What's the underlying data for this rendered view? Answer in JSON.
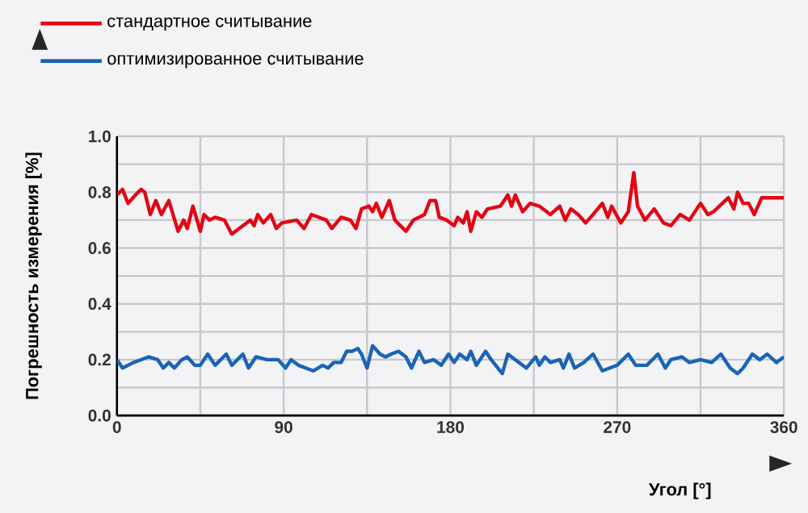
{
  "chart_data": {
    "type": "line",
    "xlabel": "Угол [°]",
    "ylabel": "Погрешность измерения [%]",
    "xlim": [
      0,
      360
    ],
    "ylim": [
      0,
      1.0
    ],
    "xticks": [
      0,
      {
        "value": 45,
        "label": null
      },
      90,
      {
        "value": 135,
        "label": null
      },
      180,
      {
        "value": 225,
        "label": null
      },
      270,
      {
        "value": 315,
        "label": null
      },
      360
    ],
    "yticks": [
      {
        "value": 0,
        "label": "0.0"
      },
      {
        "value": 0.1,
        "label": null
      },
      {
        "value": 0.2,
        "label": "0.2"
      },
      {
        "value": 0.3,
        "label": null
      },
      {
        "value": 0.4,
        "label": "0.4"
      },
      {
        "value": 0.5,
        "label": null
      },
      {
        "value": 0.6,
        "label": "0.6"
      },
      {
        "value": 0.7,
        "label": null
      },
      {
        "value": 0.8,
        "label": "0.8"
      },
      {
        "value": 0.9,
        "label": null
      },
      {
        "value": 1.0,
        "label": "1.0"
      }
    ],
    "grid": true,
    "legend": "top left",
    "series": [
      {
        "name": "стандартное считывание",
        "color": "#e30613",
        "x": [
          0,
          3,
          6,
          10,
          13,
          15,
          18,
          21,
          24,
          28,
          33,
          36,
          38,
          41,
          45,
          47,
          50,
          53,
          58,
          62,
          66,
          72,
          74,
          76,
          79,
          83,
          86,
          89,
          97,
          101,
          105,
          113,
          116,
          121,
          126,
          129,
          132,
          136,
          138,
          140,
          143,
          147,
          150,
          156,
          160,
          166,
          169,
          172,
          174,
          178,
          182,
          184,
          187,
          189,
          191,
          194,
          197,
          200,
          207,
          211,
          213,
          215,
          219,
          223,
          228,
          234,
          239,
          242,
          245,
          249,
          253,
          257,
          262,
          265,
          267,
          272,
          276,
          279,
          281,
          285,
          290,
          295,
          299,
          304,
          309,
          315,
          319,
          322,
          330,
          333,
          335,
          338,
          341,
          344,
          348,
          360
        ],
        "values": [
          0.79,
          0.81,
          0.76,
          0.79,
          0.81,
          0.8,
          0.72,
          0.77,
          0.72,
          0.77,
          0.66,
          0.7,
          0.67,
          0.75,
          0.66,
          0.72,
          0.7,
          0.71,
          0.7,
          0.65,
          0.67,
          0.7,
          0.68,
          0.72,
          0.69,
          0.72,
          0.67,
          0.69,
          0.7,
          0.67,
          0.72,
          0.7,
          0.67,
          0.71,
          0.7,
          0.67,
          0.74,
          0.75,
          0.73,
          0.76,
          0.71,
          0.77,
          0.7,
          0.66,
          0.7,
          0.72,
          0.77,
          0.77,
          0.71,
          0.7,
          0.68,
          0.71,
          0.69,
          0.73,
          0.66,
          0.73,
          0.71,
          0.74,
          0.75,
          0.79,
          0.75,
          0.79,
          0.73,
          0.76,
          0.75,
          0.72,
          0.75,
          0.7,
          0.74,
          0.72,
          0.69,
          0.72,
          0.76,
          0.71,
          0.75,
          0.69,
          0.73,
          0.87,
          0.75,
          0.7,
          0.74,
          0.69,
          0.68,
          0.72,
          0.7,
          0.76,
          0.72,
          0.73,
          0.78,
          0.74,
          0.8,
          0.76,
          0.76,
          0.72,
          0.78,
          0.78
        ]
      },
      {
        "name": "оптимизированное считывание",
        "color": "#1a64b4",
        "x": [
          0,
          3,
          9,
          13,
          17,
          22,
          25,
          28,
          31,
          35,
          38,
          42,
          45,
          49,
          53,
          59,
          62,
          68,
          71,
          75,
          81,
          87,
          91,
          94,
          98,
          106,
          111,
          114,
          117,
          121,
          124,
          127,
          130,
          132,
          135,
          138,
          142,
          145,
          148,
          152,
          156,
          159,
          163,
          166,
          171,
          175,
          179,
          182,
          185,
          189,
          191,
          194,
          199,
          202,
          208,
          211,
          215,
          221,
          226,
          228,
          231,
          234,
          239,
          241,
          244,
          247,
          252,
          257,
          262,
          266,
          270,
          276,
          280,
          286,
          292,
          296,
          299,
          305,
          309,
          315,
          321,
          326,
          331,
          335,
          338,
          343,
          347,
          351,
          356,
          360
        ],
        "values": [
          0.2,
          0.17,
          0.19,
          0.2,
          0.21,
          0.2,
          0.17,
          0.19,
          0.17,
          0.2,
          0.21,
          0.18,
          0.18,
          0.22,
          0.18,
          0.22,
          0.18,
          0.22,
          0.17,
          0.21,
          0.2,
          0.2,
          0.17,
          0.2,
          0.18,
          0.16,
          0.18,
          0.17,
          0.19,
          0.19,
          0.23,
          0.23,
          0.24,
          0.22,
          0.17,
          0.25,
          0.22,
          0.21,
          0.22,
          0.23,
          0.21,
          0.17,
          0.23,
          0.19,
          0.2,
          0.18,
          0.22,
          0.19,
          0.22,
          0.2,
          0.23,
          0.18,
          0.23,
          0.2,
          0.15,
          0.22,
          0.2,
          0.17,
          0.21,
          0.18,
          0.21,
          0.19,
          0.2,
          0.17,
          0.22,
          0.17,
          0.19,
          0.22,
          0.16,
          0.17,
          0.18,
          0.22,
          0.18,
          0.18,
          0.22,
          0.17,
          0.2,
          0.21,
          0.19,
          0.2,
          0.19,
          0.22,
          0.17,
          0.15,
          0.17,
          0.22,
          0.2,
          0.22,
          0.19,
          0.21
        ]
      }
    ]
  }
}
